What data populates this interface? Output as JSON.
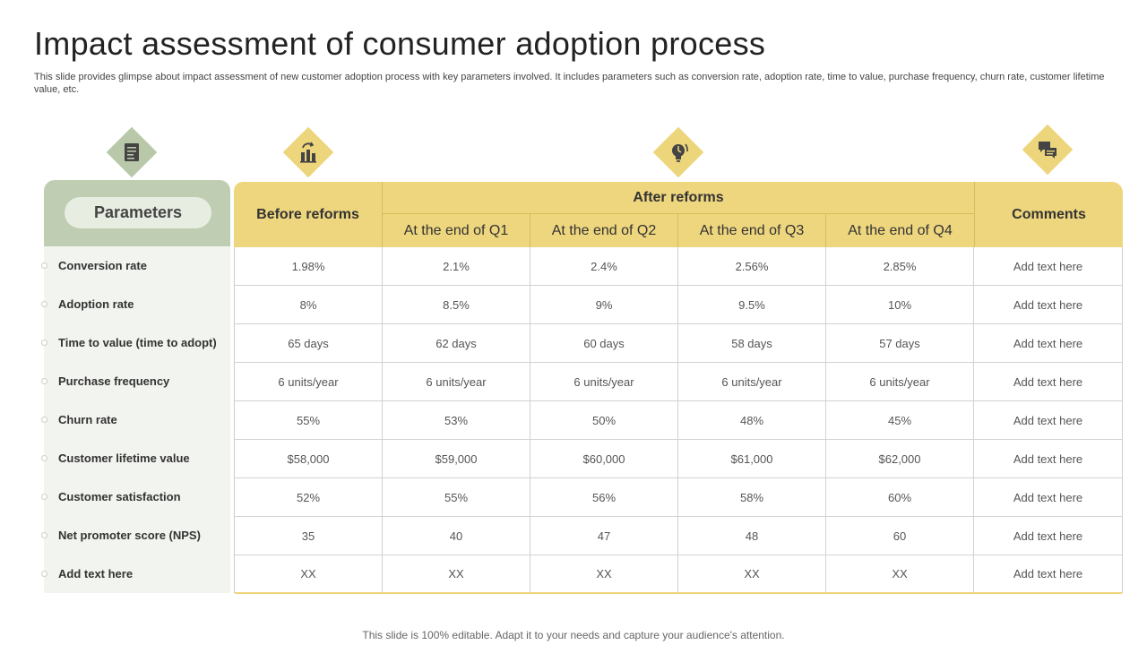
{
  "title": "Impact assessment of consumer adoption process",
  "subtitle": "This slide provides glimpse about impact assessment of new customer adoption process with key parameters involved. It includes parameters such as conversion rate, adoption rate, time to value, purchase frequency, churn rate, customer lifetime value, etc.",
  "icons": {
    "parameters": "document-list-icon",
    "before": "factory-reform-icon",
    "after": "lightbulb-idea-icon",
    "comments": "chat-bubbles-icon"
  },
  "colors": {
    "green": "#bfcdb2",
    "yellow": "#eed67e",
    "light": "#f2f4ef"
  },
  "table": {
    "parameters_header": "Parameters",
    "before_header": "Before reforms",
    "after_header": "After reforms",
    "quarters": [
      "At the end of Q1",
      "At the end of Q2",
      "At the end of Q3",
      "At the end of Q4"
    ],
    "comments_header": "Comments",
    "rows": [
      {
        "param": "Conversion rate",
        "before": "1.98%",
        "q1": "2.1%",
        "q2": "2.4%",
        "q3": "2.56%",
        "q4": "2.85%",
        "comment": "Add text here"
      },
      {
        "param": "Adoption rate",
        "before": "8%",
        "q1": "8.5%",
        "q2": "9%",
        "q3": "9.5%",
        "q4": "10%",
        "comment": "Add text here"
      },
      {
        "param": "Time to value (time to adopt)",
        "before": "65 days",
        "q1": "62 days",
        "q2": "60 days",
        "q3": "58 days",
        "q4": "57 days",
        "comment": "Add text here"
      },
      {
        "param": "Purchase frequency",
        "before": "6 units/year",
        "q1": "6 units/year",
        "q2": "6 units/year",
        "q3": "6 units/year",
        "q4": "6 units/year",
        "comment": "Add text here"
      },
      {
        "param": "Churn rate",
        "before": "55%",
        "q1": "53%",
        "q2": "50%",
        "q3": "48%",
        "q4": "45%",
        "comment": "Add text here"
      },
      {
        "param": "Customer lifetime value",
        "before": "$58,000",
        "q1": "$59,000",
        "q2": "$60,000",
        "q3": "$61,000",
        "q4": "$62,000",
        "comment": "Add text here"
      },
      {
        "param": "Customer satisfaction",
        "before": "52%",
        "q1": "55%",
        "q2": "56%",
        "q3": "58%",
        "q4": "60%",
        "comment": "Add text here"
      },
      {
        "param": "Net promoter score (NPS)",
        "before": "35",
        "q1": "40",
        "q2": "47",
        "q3": "48",
        "q4": "60",
        "comment": "Add text here"
      },
      {
        "param": "Add text here",
        "before": "XX",
        "q1": "XX",
        "q2": "XX",
        "q3": "XX",
        "q4": "XX",
        "comment": "Add text here"
      }
    ]
  },
  "footer": "This slide is 100% editable. Adapt it to your needs and capture your audience's attention."
}
